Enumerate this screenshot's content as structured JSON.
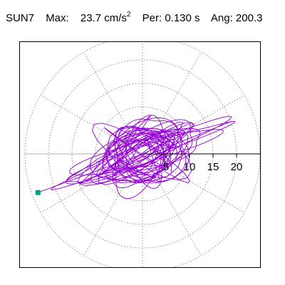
{
  "header": {
    "station": "SUN7",
    "max_label": "Max:",
    "max_value": "23.7 cm/s",
    "max_exp": "2",
    "per_label": "Per:",
    "per_value": "0.130 s",
    "ang_label": "Ang:",
    "ang_value": "200.3"
  },
  "chart_data": {
    "type": "polar-orbit",
    "title": "",
    "radial_ticks": [
      5,
      10,
      15,
      20
    ],
    "radial_tick_labels": [
      "5",
      "10",
      "15",
      "20"
    ],
    "rmax": 25,
    "ring_radii": [
      5,
      10,
      15,
      20,
      25
    ],
    "spoke_angles_deg": [
      0,
      30,
      60,
      90,
      120,
      150,
      180,
      210,
      240,
      270,
      300,
      330
    ],
    "grid": true,
    "trace_color": "#9400d3",
    "marker_color": "#00a080",
    "peak": {
      "amplitude": 23.7,
      "angle_deg": 200.3
    },
    "orbit_loops": [
      {
        "amp": 19.5,
        "angle": 200.3,
        "minor": 0.8,
        "turns": 1
      },
      {
        "amp": 18.0,
        "angle": 22,
        "minor": 1.2,
        "turns": 1
      },
      {
        "amp": 14.0,
        "angle": 195,
        "minor": 2.0,
        "turns": 1
      },
      {
        "amp": 16.5,
        "angle": 18,
        "minor": 1.5,
        "turns": 1
      },
      {
        "amp": 11.0,
        "angle": 210,
        "minor": 1.5,
        "turns": 1
      },
      {
        "amp": 13.0,
        "angle": 25,
        "minor": 2.5,
        "turns": 1
      },
      {
        "amp": 8.0,
        "angle": 60,
        "minor": 3.0,
        "turns": 1
      },
      {
        "amp": 9.0,
        "angle": 240,
        "minor": 3.5,
        "turns": 1
      },
      {
        "amp": 6.0,
        "angle": 130,
        "minor": 3.0,
        "turns": 1
      },
      {
        "amp": 7.0,
        "angle": 300,
        "minor": 2.5,
        "turns": 1
      },
      {
        "amp": 5.0,
        "angle": 90,
        "minor": 3.0,
        "turns": 1
      },
      {
        "amp": 10.0,
        "angle": 15,
        "minor": 4.0,
        "turns": 1
      },
      {
        "amp": 4.0,
        "angle": 200,
        "minor": 3.0,
        "turns": 1
      },
      {
        "amp": 6.5,
        "angle": 345,
        "minor": 3.5,
        "turns": 1
      },
      {
        "amp": 3.5,
        "angle": 270,
        "minor": 2.0,
        "turns": 1
      }
    ]
  }
}
